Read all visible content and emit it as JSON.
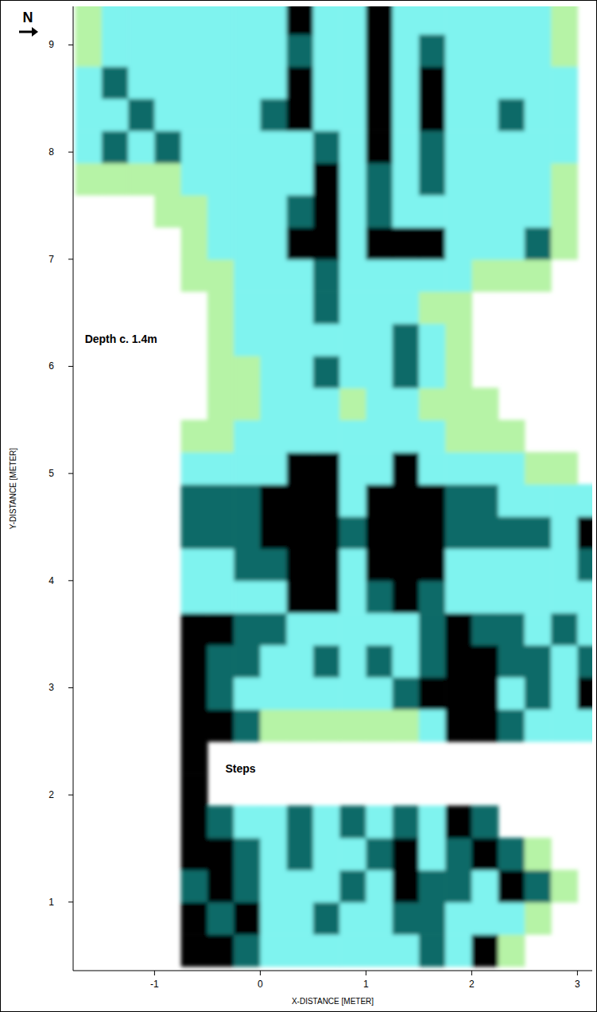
{
  "chart_data": {
    "type": "heatmap",
    "north_label": "N",
    "xlabel": "X-DISTANCE [METER]",
    "ylabel": "Y-DISTANCE [METER]",
    "xlim": [
      -1.77,
      3.14
    ],
    "ylim": [
      0.36,
      9.36
    ],
    "xticks": [
      -1,
      0,
      1,
      2,
      3
    ],
    "yticks": [
      1,
      2,
      3,
      4,
      5,
      6,
      7,
      8,
      9
    ],
    "levels": [
      1,
      2,
      3,
      4
    ],
    "colors": [
      "#b6f3a6",
      "#7ff3ef",
      "#0e6a68",
      "#000000"
    ],
    "annotations": [
      {
        "text": "Depth c. 1.4m",
        "x": -1.66,
        "y": 6.22
      },
      {
        "text": "Steps",
        "x": -0.33,
        "y": 2.21
      }
    ],
    "x": [
      -1.625,
      -1.375,
      -1.125,
      -0.875,
      -0.625,
      -0.375,
      -0.125,
      0.125,
      0.375,
      0.625,
      0.875,
      1.125,
      1.375,
      1.625,
      1.875,
      2.125,
      2.375,
      2.625,
      2.875,
      3.125
    ],
    "y": [
      0.55,
      0.85,
      1.15,
      1.45,
      1.75,
      2.05,
      2.35,
      2.65,
      2.95,
      3.25,
      3.55,
      3.85,
      4.15,
      4.45,
      4.75,
      5.05,
      5.35,
      5.65,
      5.95,
      6.25,
      6.55,
      6.85,
      7.15,
      7.45,
      7.75,
      8.05,
      8.35,
      8.65,
      8.95,
      9.25
    ],
    "values": [
      [
        null,
        null,
        null,
        null,
        4,
        4,
        3,
        2,
        2,
        2,
        2,
        2,
        2,
        3,
        2,
        4,
        1,
        null,
        null,
        null
      ],
      [
        null,
        null,
        null,
        null,
        4,
        3,
        4,
        2,
        2,
        3,
        2,
        2,
        3,
        3,
        2,
        2,
        2,
        1,
        null,
        null
      ],
      [
        null,
        null,
        null,
        null,
        3,
        4,
        3,
        2,
        2,
        2,
        3,
        2,
        4,
        3,
        3,
        2,
        4,
        3,
        1,
        null
      ],
      [
        null,
        null,
        null,
        null,
        4,
        4,
        3,
        2,
        3,
        2,
        2,
        3,
        4,
        2,
        3,
        4,
        3,
        1,
        null,
        null
      ],
      [
        null,
        null,
        null,
        null,
        4,
        3,
        2,
        2,
        3,
        2,
        3,
        2,
        3,
        2,
        4,
        3,
        null,
        null,
        null,
        null
      ],
      [
        null,
        null,
        null,
        null,
        4,
        null,
        null,
        null,
        null,
        null,
        null,
        null,
        null,
        null,
        null,
        null,
        null,
        null,
        null,
        null
      ],
      [
        null,
        null,
        null,
        null,
        4,
        null,
        null,
        null,
        null,
        null,
        null,
        null,
        null,
        null,
        null,
        null,
        null,
        null,
        null,
        null
      ],
      [
        null,
        null,
        null,
        null,
        4,
        4,
        3,
        1,
        1,
        1,
        1,
        1,
        1,
        2,
        4,
        4,
        3,
        2,
        2,
        2
      ],
      [
        null,
        null,
        null,
        null,
        4,
        3,
        2,
        2,
        2,
        2,
        2,
        2,
        3,
        4,
        4,
        4,
        2,
        3,
        2,
        4
      ],
      [
        null,
        null,
        null,
        null,
        4,
        3,
        3,
        2,
        2,
        3,
        2,
        3,
        2,
        3,
        4,
        4,
        3,
        3,
        2,
        3
      ],
      [
        null,
        null,
        null,
        null,
        4,
        4,
        3,
        3,
        2,
        2,
        2,
        2,
        2,
        3,
        4,
        3,
        3,
        2,
        3,
        2
      ],
      [
        null,
        null,
        null,
        null,
        2,
        2,
        2,
        2,
        4,
        4,
        2,
        3,
        4,
        3,
        2,
        2,
        2,
        2,
        2,
        2
      ],
      [
        null,
        null,
        null,
        null,
        2,
        2,
        3,
        3,
        4,
        4,
        2,
        4,
        4,
        4,
        2,
        2,
        2,
        2,
        2,
        3
      ],
      [
        null,
        null,
        null,
        null,
        3,
        3,
        3,
        4,
        4,
        4,
        3,
        4,
        4,
        4,
        3,
        3,
        3,
        3,
        2,
        4
      ],
      [
        null,
        null,
        null,
        null,
        3,
        3,
        3,
        4,
        4,
        4,
        2,
        4,
        4,
        4,
        3,
        3,
        2,
        2,
        2,
        2
      ],
      [
        null,
        null,
        null,
        null,
        2,
        2,
        2,
        2,
        4,
        4,
        2,
        2,
        4,
        2,
        2,
        2,
        2,
        1,
        1,
        null
      ],
      [
        null,
        null,
        null,
        null,
        1,
        1,
        2,
        2,
        2,
        2,
        2,
        2,
        2,
        2,
        1,
        1,
        1,
        null,
        null,
        null
      ],
      [
        null,
        null,
        null,
        null,
        null,
        1,
        1,
        2,
        2,
        2,
        1,
        2,
        2,
        1,
        1,
        1,
        null,
        null,
        null,
        null
      ],
      [
        null,
        null,
        null,
        null,
        null,
        1,
        1,
        2,
        2,
        3,
        2,
        2,
        3,
        2,
        1,
        null,
        null,
        null,
        null,
        null
      ],
      [
        null,
        null,
        null,
        null,
        null,
        1,
        2,
        2,
        2,
        2,
        2,
        2,
        3,
        2,
        1,
        null,
        null,
        null,
        null,
        null
      ],
      [
        null,
        null,
        null,
        null,
        null,
        1,
        2,
        2,
        2,
        3,
        2,
        2,
        2,
        1,
        1,
        null,
        null,
        null,
        null,
        null
      ],
      [
        null,
        null,
        null,
        null,
        1,
        1,
        2,
        2,
        2,
        3,
        2,
        2,
        2,
        2,
        2,
        1,
        1,
        1,
        null,
        null
      ],
      [
        null,
        null,
        null,
        null,
        1,
        2,
        2,
        2,
        4,
        4,
        2,
        4,
        4,
        4,
        2,
        2,
        2,
        3,
        1,
        null
      ],
      [
        null,
        null,
        null,
        1,
        1,
        2,
        2,
        2,
        3,
        4,
        2,
        3,
        2,
        2,
        2,
        2,
        2,
        2,
        1,
        null
      ],
      [
        1,
        1,
        1,
        1,
        2,
        2,
        2,
        2,
        2,
        4,
        2,
        3,
        2,
        3,
        2,
        2,
        2,
        2,
        1,
        null
      ],
      [
        2,
        3,
        2,
        3,
        2,
        2,
        2,
        2,
        2,
        3,
        2,
        4,
        2,
        3,
        2,
        2,
        2,
        2,
        2,
        null
      ],
      [
        2,
        2,
        3,
        2,
        2,
        2,
        2,
        3,
        4,
        2,
        2,
        4,
        2,
        4,
        2,
        2,
        3,
        2,
        2,
        null
      ],
      [
        2,
        3,
        2,
        2,
        2,
        2,
        2,
        2,
        4,
        2,
        2,
        4,
        2,
        4,
        2,
        2,
        2,
        2,
        2,
        null
      ],
      [
        1,
        2,
        2,
        2,
        2,
        2,
        2,
        2,
        3,
        2,
        2,
        4,
        2,
        3,
        2,
        2,
        2,
        2,
        1,
        null
      ],
      [
        1,
        2,
        2,
        2,
        2,
        2,
        2,
        2,
        4,
        2,
        2,
        4,
        2,
        2,
        2,
        2,
        2,
        2,
        1,
        null
      ]
    ]
  }
}
